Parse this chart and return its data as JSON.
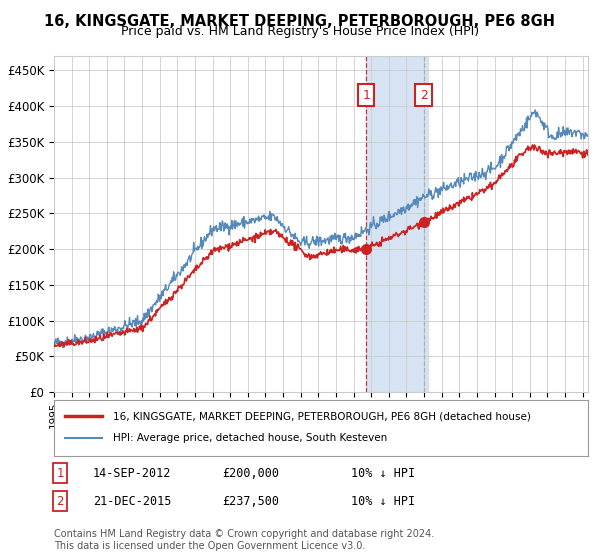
{
  "title": "16, KINGSGATE, MARKET DEEPING, PETERBOROUGH, PE6 8GH",
  "subtitle": "Price paid vs. HM Land Registry's House Price Index (HPI)",
  "ylim": [
    0,
    470000
  ],
  "yticks": [
    0,
    50000,
    100000,
    150000,
    200000,
    250000,
    300000,
    350000,
    400000,
    450000
  ],
  "ytick_labels": [
    "£0",
    "£50K",
    "£100K",
    "£150K",
    "£200K",
    "£250K",
    "£300K",
    "£350K",
    "£400K",
    "£450K"
  ],
  "xlim_start": 1995.0,
  "xlim_end": 2025.3,
  "transaction1_date": 2012.71,
  "transaction1_price": 200000,
  "transaction1_label": "1",
  "transaction2_date": 2015.97,
  "transaction2_price": 237500,
  "transaction2_label": "2",
  "shade_start": 2012.71,
  "shade_end": 2016.2,
  "red_line_color": "#cc2222",
  "blue_line_color": "#5588bb",
  "shade_color": "#ccddf0",
  "transaction_box_color": "#cc2222",
  "grid_color": "#cccccc",
  "background_color": "#ffffff",
  "legend_line1": "16, KINGSGATE, MARKET DEEPING, PETERBOROUGH, PE6 8GH (detached house)",
  "legend_line2": "HPI: Average price, detached house, South Kesteven",
  "footer": "Contains HM Land Registry data © Crown copyright and database right 2024.\nThis data is licensed under the Open Government Licence v3.0."
}
